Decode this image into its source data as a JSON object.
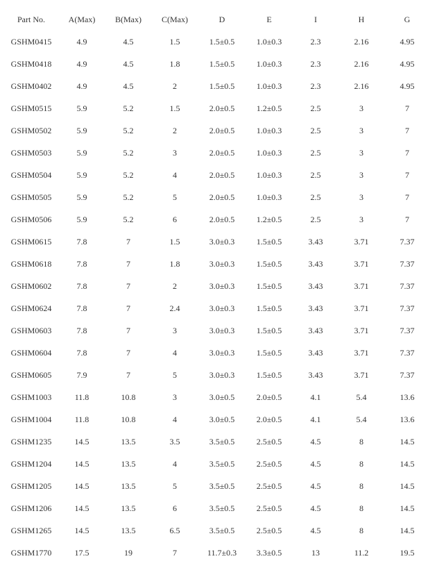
{
  "table": {
    "headers": [
      "Part No.",
      "A(Max)",
      "B(Max)",
      "C(Max)",
      "D",
      "E",
      "I",
      "H",
      "G"
    ],
    "rows": [
      [
        "GSHM0415",
        "4.9",
        "4.5",
        "1.5",
        "1.5±0.5",
        "1.0±0.3",
        "2.3",
        "2.16",
        "4.95"
      ],
      [
        "GSHM0418",
        "4.9",
        "4.5",
        "1.8",
        "1.5±0.5",
        "1.0±0.3",
        "2.3",
        "2.16",
        "4.95"
      ],
      [
        "GSHM0402",
        "4.9",
        "4.5",
        "2",
        "1.5±0.5",
        "1.0±0.3",
        "2.3",
        "2.16",
        "4.95"
      ],
      [
        "GSHM0515",
        "5.9",
        "5.2",
        "1.5",
        "2.0±0.5",
        "1.2±0.5",
        "2.5",
        "3",
        "7"
      ],
      [
        "GSHM0502",
        "5.9",
        "5.2",
        "2",
        "2.0±0.5",
        "1.0±0.3",
        "2.5",
        "3",
        "7"
      ],
      [
        "GSHM0503",
        "5.9",
        "5.2",
        "3",
        "2.0±0.5",
        "1.0±0.3",
        "2.5",
        "3",
        "7"
      ],
      [
        "GSHM0504",
        "5.9",
        "5.2",
        "4",
        "2.0±0.5",
        "1.0±0.3",
        "2.5",
        "3",
        "7"
      ],
      [
        "GSHM0505",
        "5.9",
        "5.2",
        "5",
        "2.0±0.5",
        "1.0±0.3",
        "2.5",
        "3",
        "7"
      ],
      [
        "GSHM0506",
        "5.9",
        "5.2",
        "6",
        "2.0±0.5",
        "1.2±0.5",
        "2.5",
        "3",
        "7"
      ],
      [
        "GSHM0615",
        "7.8",
        "7",
        "1.5",
        "3.0±0.3",
        "1.5±0.5",
        "3.43",
        "3.71",
        "7.37"
      ],
      [
        "GSHM0618",
        "7.8",
        "7",
        "1.8",
        "3.0±0.3",
        "1.5±0.5",
        "3.43",
        "3.71",
        "7.37"
      ],
      [
        "GSHM0602",
        "7.8",
        "7",
        "2",
        "3.0±0.3",
        "1.5±0.5",
        "3.43",
        "3.71",
        "7.37"
      ],
      [
        "GSHM0624",
        "7.8",
        "7",
        "2.4",
        "3.0±0.3",
        "1.5±0.5",
        "3.43",
        "3.71",
        "7.37"
      ],
      [
        "GSHM0603",
        "7.8",
        "7",
        "3",
        "3.0±0.3",
        "1.5±0.5",
        "3.43",
        "3.71",
        "7.37"
      ],
      [
        "GSHM0604",
        "7.8",
        "7",
        "4",
        "3.0±0.3",
        "1.5±0.5",
        "3.43",
        "3.71",
        "7.37"
      ],
      [
        "GSHM0605",
        "7.9",
        "7",
        "5",
        "3.0±0.3",
        "1.5±0.5",
        "3.43",
        "3.71",
        "7.37"
      ],
      [
        "GSHM1003",
        "11.8",
        "10.8",
        "3",
        "3.0±0.5",
        "2.0±0.5",
        "4.1",
        "5.4",
        "13.6"
      ],
      [
        "GSHM1004",
        "11.8",
        "10.8",
        "4",
        "3.0±0.5",
        "2.0±0.5",
        "4.1",
        "5.4",
        "13.6"
      ],
      [
        "GSHM1235",
        "14.5",
        "13.5",
        "3.5",
        "3.5±0.5",
        "2.5±0.5",
        "4.5",
        "8",
        "14.5"
      ],
      [
        "GSHM1204",
        "14.5",
        "13.5",
        "4",
        "3.5±0.5",
        "2.5±0.5",
        "4.5",
        "8",
        "14.5"
      ],
      [
        "GSHM1205",
        "14.5",
        "13.5",
        "5",
        "3.5±0.5",
        "2.5±0.5",
        "4.5",
        "8",
        "14.5"
      ],
      [
        "GSHM1206",
        "14.5",
        "13.5",
        "6",
        "3.5±0.5",
        "2.5±0.5",
        "4.5",
        "8",
        "14.5"
      ],
      [
        "GSHM1265",
        "14.5",
        "13.5",
        "6.5",
        "3.5±0.5",
        "2.5±0.5",
        "4.5",
        "8",
        "14.5"
      ],
      [
        "GSHM1770",
        "17.5",
        "19",
        "7",
        "11.7±0.3",
        "3.3±0.5",
        "13",
        "11.2",
        "19.5"
      ]
    ]
  }
}
